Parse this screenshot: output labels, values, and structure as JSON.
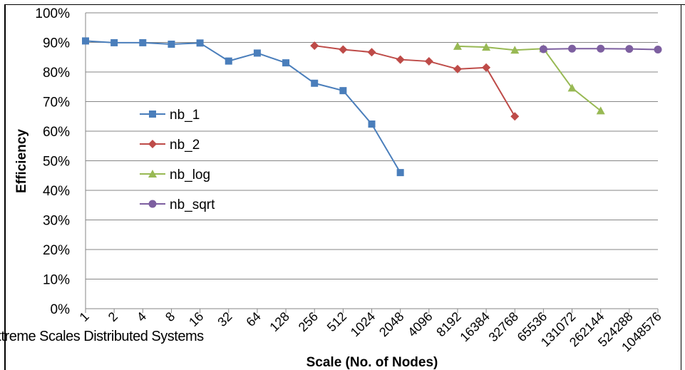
{
  "chart_data": {
    "type": "line",
    "categories": [
      "1",
      "2",
      "4",
      "8",
      "16",
      "32",
      "64",
      "128",
      "256",
      "512",
      "1024",
      "2048",
      "4096",
      "8192",
      "16384",
      "32768",
      "65536",
      "131072",
      "262144",
      "524288",
      "1048576"
    ],
    "xlabel": "Scale (No. of Nodes)",
    "ylabel": "Efficiency",
    "ylim": [
      0,
      100
    ],
    "yticks": [
      "0%",
      "10%",
      "20%",
      "30%",
      "40%",
      "50%",
      "60%",
      "70%",
      "80%",
      "90%",
      "100%"
    ],
    "grid": true,
    "legend_position": "left",
    "series": [
      {
        "name": "nb_1",
        "color": "#4a7ebb",
        "marker": "square",
        "values": [
          90.5,
          89.9,
          89.9,
          89.4,
          89.8,
          83.7,
          86.4,
          83.1,
          76.2,
          73.7,
          62.4,
          46.0,
          null,
          null,
          null,
          null,
          null,
          null,
          null,
          null,
          null
        ]
      },
      {
        "name": "nb_2",
        "color": "#be4b48",
        "marker": "diamond",
        "values": [
          null,
          null,
          null,
          null,
          null,
          null,
          null,
          null,
          88.9,
          87.6,
          86.7,
          84.2,
          83.6,
          81.0,
          81.5,
          65.0,
          null,
          null,
          null,
          null,
          null
        ]
      },
      {
        "name": "nb_log",
        "color": "#98b954",
        "marker": "triangle",
        "values": [
          null,
          null,
          null,
          null,
          null,
          null,
          null,
          null,
          null,
          null,
          null,
          null,
          null,
          88.7,
          88.4,
          87.4,
          87.9,
          74.6,
          66.9,
          null,
          null
        ]
      },
      {
        "name": "nb_sqrt",
        "color": "#7d5fa0",
        "marker": "circle",
        "values": [
          null,
          null,
          null,
          null,
          null,
          null,
          null,
          null,
          null,
          null,
          null,
          null,
          null,
          null,
          null,
          null,
          87.7,
          87.9,
          87.9,
          87.8,
          87.6
        ]
      }
    ]
  },
  "caption": "xtreme Scales Distributed Systems"
}
